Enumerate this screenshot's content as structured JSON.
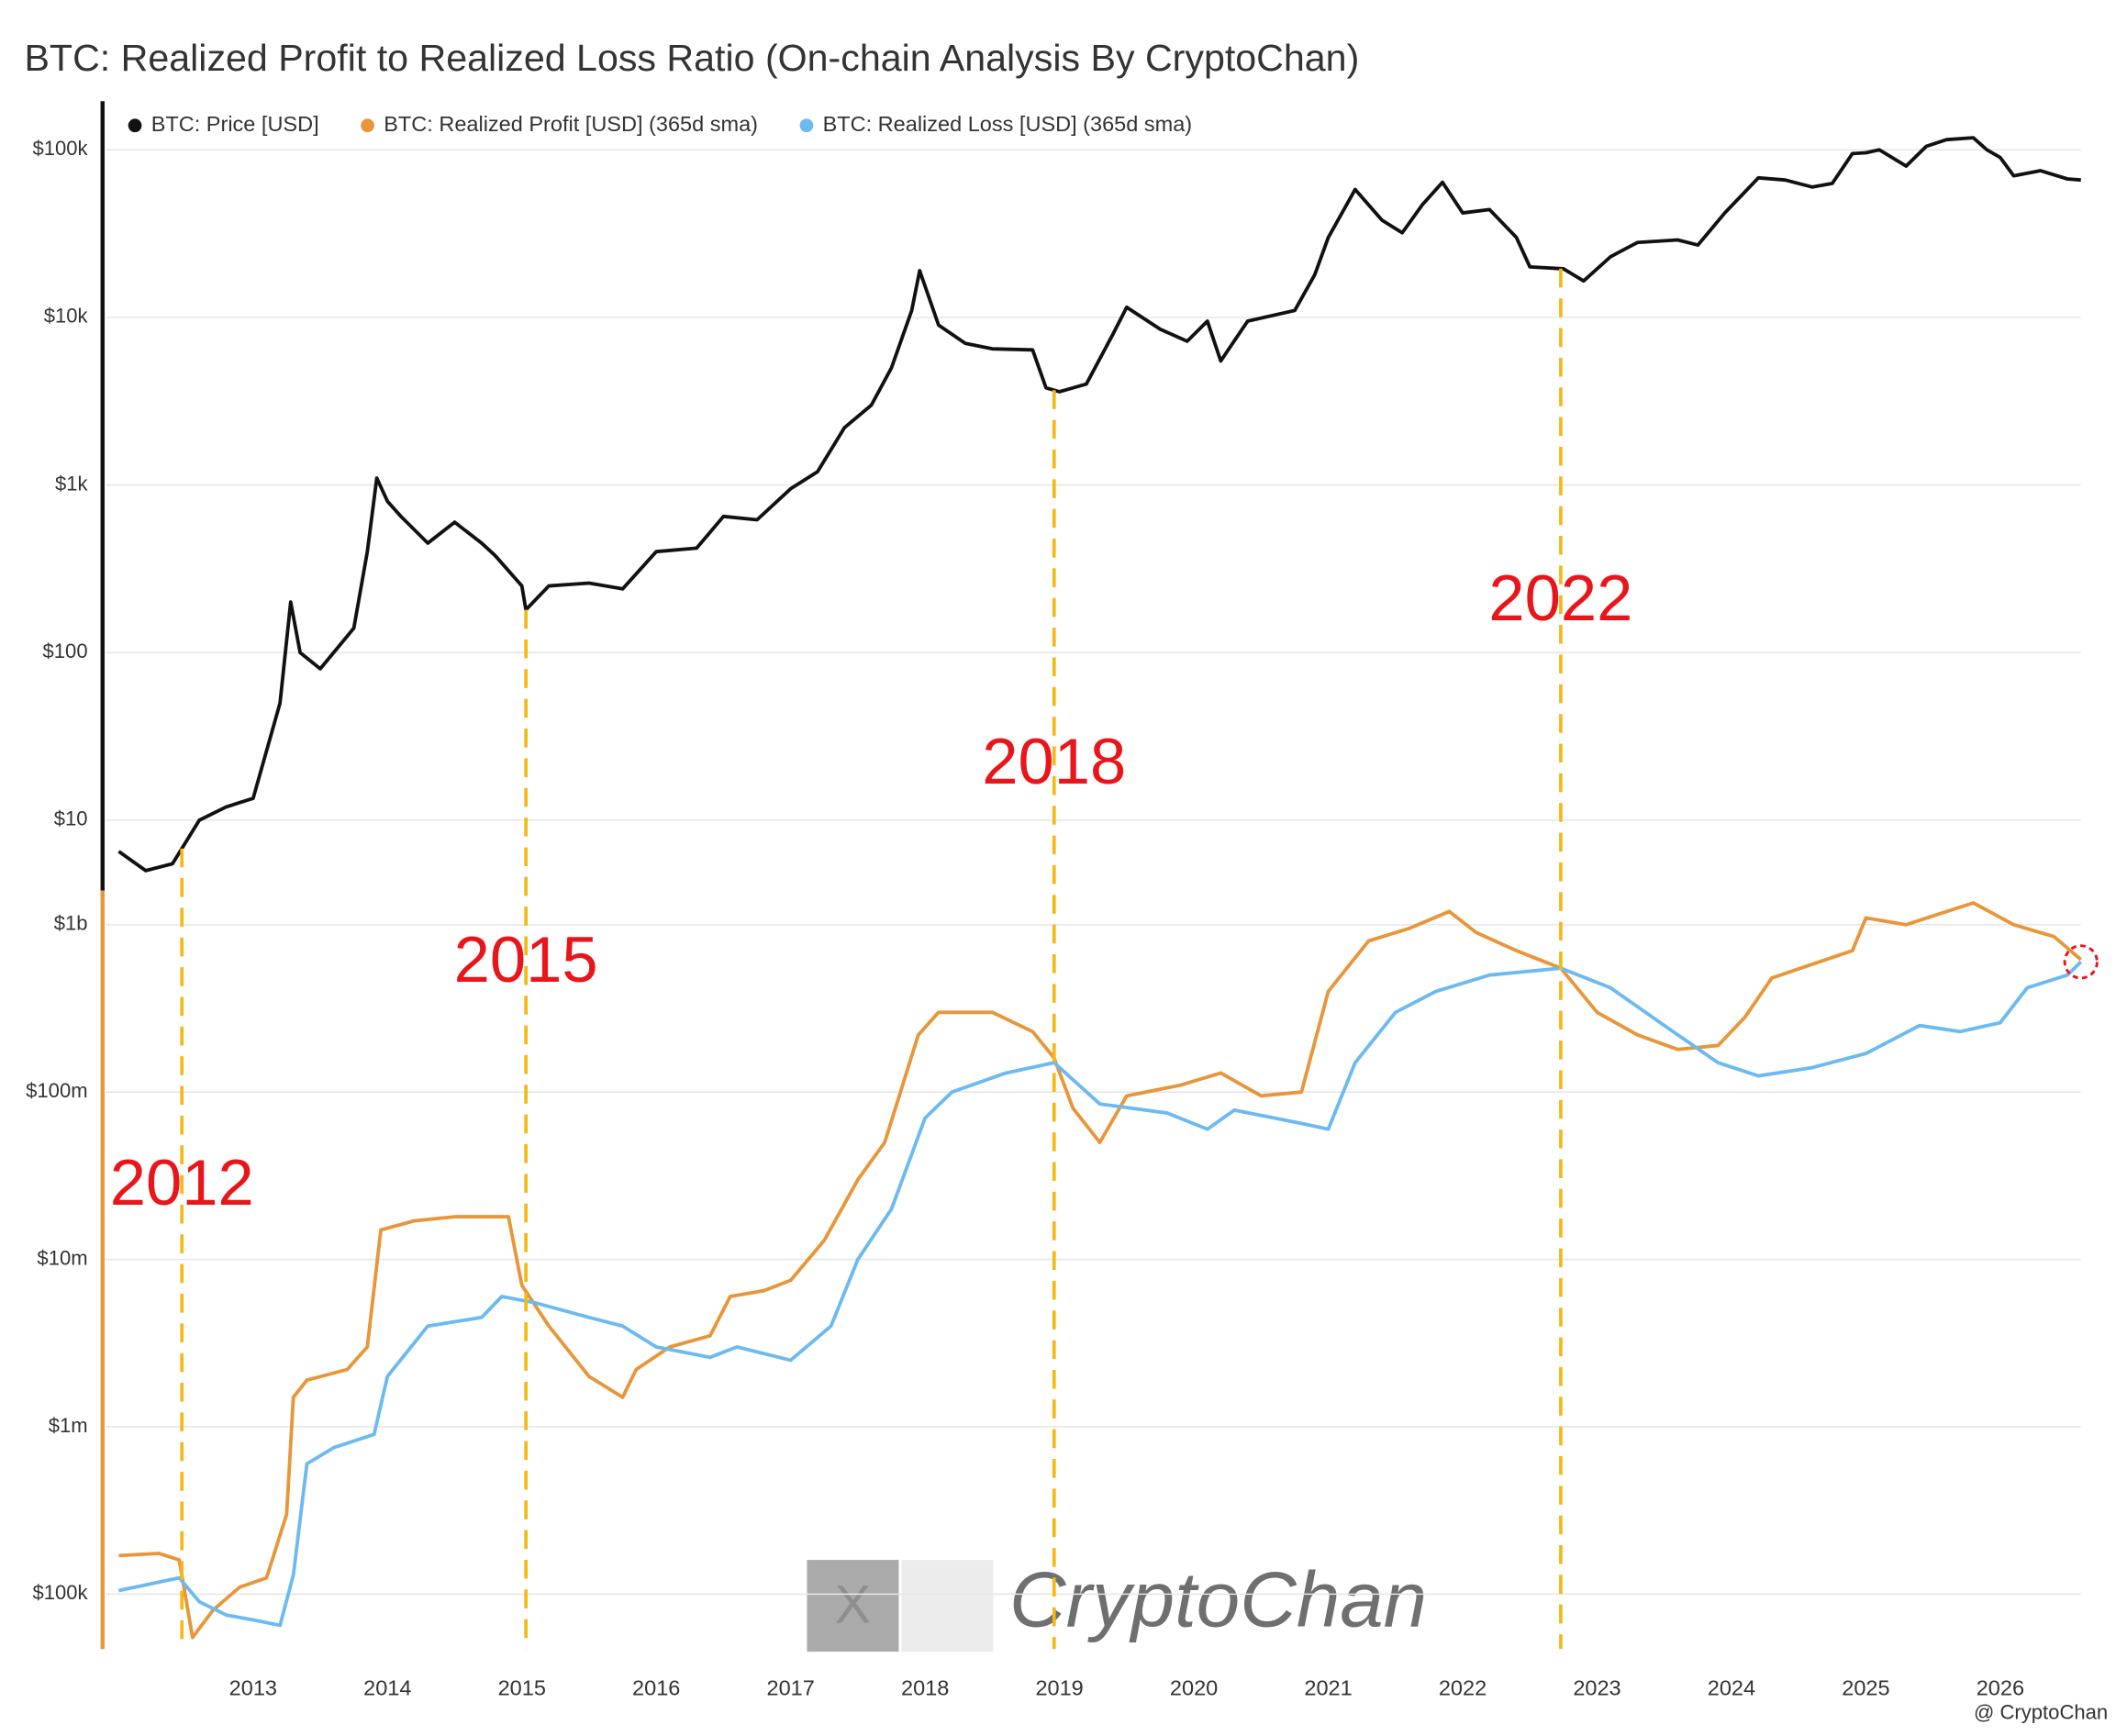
{
  "chart_data": [
    {
      "type": "line",
      "title": "BTC: Realized Profit to Realized Loss Ratio (On-chain Analysis By CryptoChan)",
      "log_scale": true,
      "grid": true,
      "axis_color": "#111111",
      "xlim": [
        2011.9,
        2026.6
      ],
      "ylim": [
        3.8,
        195000
      ],
      "yticks": [
        {
          "value": 10,
          "label": "$10"
        },
        {
          "value": 100,
          "label": "$100"
        },
        {
          "value": 1000,
          "label": "$1k"
        },
        {
          "value": 10000,
          "label": "$10k"
        },
        {
          "value": 100000,
          "label": "$100k"
        }
      ],
      "series": [
        {
          "name": "BTC: Price [USD]",
          "color": "#111111",
          "x": [
            2012.0,
            2012.2,
            2012.4,
            2012.6,
            2012.8,
            2013.0,
            2013.2,
            2013.28,
            2013.35,
            2013.5,
            2013.75,
            2013.85,
            2013.92,
            2014.0,
            2014.1,
            2014.3,
            2014.5,
            2014.7,
            2014.8,
            2015.0,
            2015.03,
            2015.2,
            2015.5,
            2015.75,
            2016.0,
            2016.3,
            2016.5,
            2016.75,
            2017.0,
            2017.2,
            2017.4,
            2017.6,
            2017.75,
            2017.9,
            2017.96,
            2018.1,
            2018.3,
            2018.5,
            2018.8,
            2018.9,
            2019.0,
            2019.2,
            2019.4,
            2019.5,
            2019.75,
            2019.95,
            2020.1,
            2020.2,
            2020.4,
            2020.75,
            2020.9,
            2021.0,
            2021.2,
            2021.4,
            2021.55,
            2021.7,
            2021.85,
            2022.0,
            2022.2,
            2022.4,
            2022.5,
            2022.75,
            2022.9,
            2023.1,
            2023.3,
            2023.6,
            2023.75,
            2023.95,
            2024.2,
            2024.4,
            2024.6,
            2024.75,
            2024.9,
            2025.0,
            2025.1,
            2025.3,
            2025.45,
            2025.6,
            2025.8,
            2025.9,
            2026.0,
            2026.1,
            2026.3,
            2026.5,
            2026.6
          ],
          "values": [
            6.5,
            5,
            5.5,
            10,
            12,
            13.5,
            50,
            200,
            100,
            80,
            140,
            400,
            1100,
            800,
            650,
            450,
            600,
            450,
            380,
            250,
            180,
            250,
            260,
            240,
            400,
            420,
            650,
            620,
            950,
            1200,
            2200,
            3000,
            5000,
            11000,
            19000,
            9000,
            7000,
            6500,
            6400,
            3800,
            3600,
            4000,
            8000,
            11500,
            8500,
            7200,
            9500,
            5500,
            9500,
            11000,
            18000,
            30000,
            58000,
            38000,
            32000,
            47000,
            64000,
            42000,
            44000,
            30000,
            20000,
            19500,
            16500,
            23000,
            28000,
            29000,
            27000,
            42000,
            68000,
            66000,
            60000,
            63000,
            95000,
            96000,
            100000,
            80000,
            105000,
            115000,
            118000,
            100000,
            90000,
            70000,
            75000,
            67000,
            66000
          ]
        }
      ]
    },
    {
      "type": "line",
      "log_scale": true,
      "grid": true,
      "axis_color": "#e8963a",
      "xlim": [
        2011.9,
        2026.6
      ],
      "ylim": [
        47000,
        1600000000
      ],
      "xticks": [
        2013,
        2014,
        2015,
        2016,
        2017,
        2018,
        2019,
        2020,
        2021,
        2022,
        2023,
        2024,
        2025,
        2026
      ],
      "yticks": [
        {
          "value": 100000,
          "label": "$100k"
        },
        {
          "value": 1000000,
          "label": "$1m"
        },
        {
          "value": 10000000,
          "label": "$10m"
        },
        {
          "value": 100000000,
          "label": "$100m"
        },
        {
          "value": 1000000000,
          "label": "$1b"
        }
      ],
      "series": [
        {
          "name": "BTC: Realized Profit [USD] (365d sma)",
          "color": "#e8963a",
          "x": [
            2012.0,
            2012.3,
            2012.45,
            2012.55,
            2012.7,
            2012.9,
            2013.1,
            2013.25,
            2013.3,
            2013.4,
            2013.7,
            2013.85,
            2013.95,
            2014.2,
            2014.5,
            2014.9,
            2015.0,
            2015.2,
            2015.5,
            2015.75,
            2015.85,
            2016.1,
            2016.4,
            2016.55,
            2016.8,
            2017.0,
            2017.25,
            2017.5,
            2017.7,
            2017.95,
            2018.1,
            2018.5,
            2018.8,
            2018.96,
            2019.1,
            2019.3,
            2019.5,
            2019.9,
            2020.2,
            2020.5,
            2020.8,
            2021.0,
            2021.3,
            2021.6,
            2021.9,
            2022.1,
            2022.4,
            2022.73,
            2023.0,
            2023.3,
            2023.6,
            2023.9,
            2024.1,
            2024.3,
            2024.6,
            2024.9,
            2025.0,
            2025.3,
            2025.6,
            2025.8,
            2026.1,
            2026.4,
            2026.6
          ],
          "values": [
            170000,
            175000,
            160000,
            55000,
            80000,
            110000,
            125000,
            300000,
            1500000,
            1900000,
            2200000,
            3000000,
            15000000,
            17000000,
            18000000,
            18000000,
            7000000,
            4000000,
            2000000,
            1500000,
            2200000,
            3000000,
            3500000,
            6000000,
            6500000,
            7500000,
            13000000,
            30000000,
            50000000,
            220000000,
            300000000,
            300000000,
            230000000,
            160000000,
            80000000,
            50000000,
            95000000,
            110000000,
            130000000,
            95000000,
            100000000,
            400000000,
            800000000,
            950000000,
            1200000000,
            900000000,
            700000000,
            550000000,
            300000000,
            220000000,
            180000000,
            190000000,
            280000000,
            480000000,
            580000000,
            700000000,
            1100000000,
            1000000000,
            1200000000,
            1350000000,
            1000000000,
            850000000,
            620000000
          ]
        },
        {
          "name": "BTC: Realized Loss [USD] (365d sma)",
          "color": "#6cbaf0",
          "x": [
            2012.0,
            2012.45,
            2012.6,
            2012.8,
            2013.0,
            2013.2,
            2013.3,
            2013.4,
            2013.6,
            2013.9,
            2014.0,
            2014.3,
            2014.7,
            2014.85,
            2015.1,
            2015.5,
            2015.75,
            2016.0,
            2016.4,
            2016.6,
            2017.0,
            2017.3,
            2017.5,
            2017.75,
            2018.0,
            2018.2,
            2018.6,
            2018.96,
            2019.3,
            2019.8,
            2020.1,
            2020.3,
            2020.8,
            2021.0,
            2021.2,
            2021.5,
            2021.8,
            2022.2,
            2022.73,
            2023.1,
            2023.5,
            2023.9,
            2024.2,
            2024.6,
            2025.0,
            2025.4,
            2025.7,
            2026.0,
            2026.2,
            2026.5,
            2026.6
          ],
          "values": [
            105000,
            125000,
            90000,
            75000,
            70000,
            65000,
            130000,
            600000,
            750000,
            900000,
            2000000,
            4000000,
            4500000,
            6000000,
            5500000,
            4500000,
            4000000,
            3000000,
            2600000,
            3000000,
            2500000,
            4000000,
            10000000,
            20000000,
            70000000,
            100000000,
            130000000,
            150000000,
            85000000,
            75000000,
            60000000,
            78000000,
            65000000,
            60000000,
            150000000,
            300000000,
            400000000,
            500000000,
            550000000,
            420000000,
            250000000,
            150000000,
            125000000,
            140000000,
            170000000,
            250000000,
            230000000,
            260000000,
            420000000,
            500000000,
            600000000
          ]
        }
      ],
      "annotations": [
        {
          "text": "2012",
          "x": 2012.47
        },
        {
          "text": "2015",
          "x": 2015.03
        },
        {
          "text": "2018",
          "x": 2018.96
        },
        {
          "text": "2022",
          "x": 2022.73
        }
      ]
    }
  ],
  "watermark": "CryptoChan",
  "credit": "@ CryptoChan"
}
